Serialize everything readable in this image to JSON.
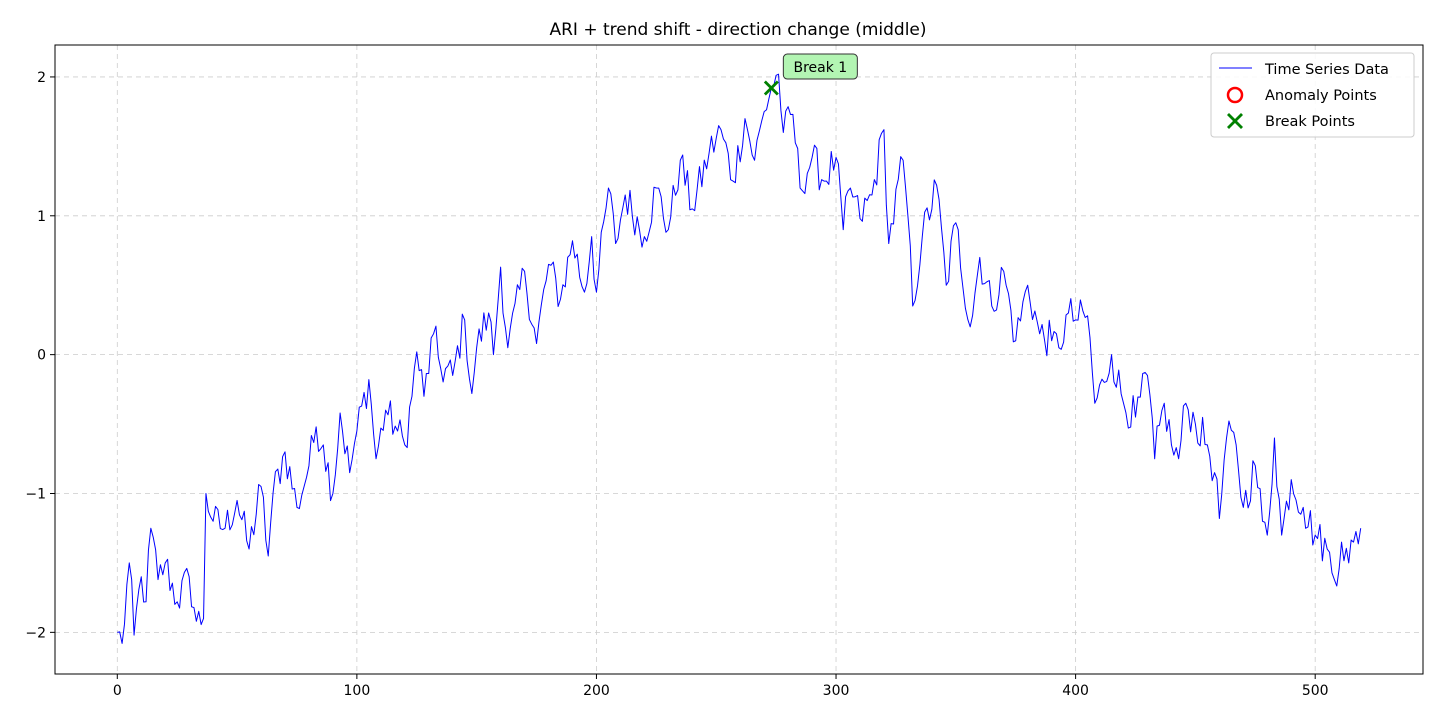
{
  "chart_data": {
    "type": "line",
    "title": "ARI + trend shift - direction change (middle)",
    "xlabel": "",
    "ylabel": "",
    "xlim": [
      -26,
      545
    ],
    "ylim": [
      -2.3,
      2.23
    ],
    "x_ticks": [
      0,
      100,
      200,
      300,
      400,
      500
    ],
    "y_ticks": [
      -2,
      -1,
      0,
      1,
      2
    ],
    "x_tick_labels": [
      "0",
      "100",
      "200",
      "300",
      "400",
      "500"
    ],
    "y_tick_labels": [
      "−2",
      "−1",
      "0",
      "1",
      "2"
    ],
    "grid": true,
    "legend_position": "top-right",
    "legend": [
      {
        "label": "Time Series Data",
        "marker": "line",
        "color": "#0000ff"
      },
      {
        "label": "Anomaly Points",
        "marker": "circle",
        "color": "#ff0000"
      },
      {
        "label": "Break Points",
        "marker": "x",
        "color": "#008000"
      }
    ],
    "series": [
      {
        "name": "Time Series Data",
        "color": "#0000ff",
        "n_points": 520,
        "anchors": [
          [
            0,
            -2.0
          ],
          [
            2,
            -2.08
          ],
          [
            5,
            -1.5
          ],
          [
            7,
            -2.02
          ],
          [
            10,
            -1.6
          ],
          [
            12,
            -1.78
          ],
          [
            14,
            -1.25
          ],
          [
            17,
            -1.62
          ],
          [
            20,
            -1.5
          ],
          [
            25,
            -1.78
          ],
          [
            30,
            -1.6
          ],
          [
            33,
            -1.92
          ],
          [
            36,
            -1.9
          ],
          [
            37,
            -1.0
          ],
          [
            40,
            -1.2
          ],
          [
            45,
            -1.25
          ],
          [
            50,
            -1.05
          ],
          [
            55,
            -1.4
          ],
          [
            60,
            -0.95
          ],
          [
            63,
            -1.45
          ],
          [
            65,
            -1.0
          ],
          [
            70,
            -0.7
          ],
          [
            75,
            -1.1
          ],
          [
            80,
            -0.8
          ],
          [
            83,
            -0.52
          ],
          [
            86,
            -0.65
          ],
          [
            90,
            -1.0
          ],
          [
            93,
            -0.42
          ],
          [
            97,
            -0.85
          ],
          [
            100,
            -0.55
          ],
          [
            105,
            -0.18
          ],
          [
            108,
            -0.75
          ],
          [
            112,
            -0.4
          ],
          [
            117,
            -0.55
          ],
          [
            120,
            -0.65
          ],
          [
            123,
            -0.3
          ],
          [
            125,
            0.02
          ],
          [
            128,
            -0.3
          ],
          [
            132,
            0.15
          ],
          [
            135,
            -0.1
          ],
          [
            140,
            -0.15
          ],
          [
            145,
            0.25
          ],
          [
            148,
            -0.28
          ],
          [
            150,
            0.05
          ],
          [
            155,
            0.3
          ],
          [
            157,
            0.0
          ],
          [
            160,
            0.63
          ],
          [
            163,
            0.05
          ],
          [
            170,
            0.6
          ],
          [
            175,
            0.08
          ],
          [
            180,
            0.65
          ],
          [
            185,
            0.4
          ],
          [
            190,
            0.82
          ],
          [
            195,
            0.45
          ],
          [
            198,
            0.85
          ],
          [
            200,
            0.45
          ],
          [
            205,
            1.2
          ],
          [
            208,
            0.8
          ],
          [
            212,
            1.15
          ],
          [
            220,
            0.85
          ],
          [
            225,
            1.2
          ],
          [
            230,
            0.9
          ],
          [
            235,
            1.4
          ],
          [
            240,
            1.05
          ],
          [
            247,
            1.45
          ],
          [
            252,
            1.62
          ],
          [
            257,
            1.25
          ],
          [
            262,
            1.7
          ],
          [
            266,
            1.4
          ],
          [
            270,
            1.75
          ],
          [
            273,
            1.92
          ],
          [
            276,
            2.02
          ],
          [
            278,
            1.6
          ],
          [
            282,
            1.73
          ],
          [
            285,
            1.2
          ],
          [
            290,
            1.42
          ],
          [
            295,
            1.25
          ],
          [
            300,
            1.42
          ],
          [
            303,
            0.9
          ],
          [
            306,
            1.2
          ],
          [
            310,
            0.98
          ],
          [
            315,
            1.15
          ],
          [
            320,
            1.62
          ],
          [
            322,
            0.8
          ],
          [
            328,
            1.4
          ],
          [
            330,
            1.0
          ],
          [
            332,
            0.35
          ],
          [
            336,
            0.85
          ],
          [
            342,
            1.22
          ],
          [
            346,
            0.5
          ],
          [
            350,
            0.95
          ],
          [
            356,
            0.2
          ],
          [
            360,
            0.7
          ],
          [
            365,
            0.35
          ],
          [
            370,
            0.6
          ],
          [
            375,
            0.1
          ],
          [
            380,
            0.5
          ],
          [
            385,
            0.15
          ],
          [
            390,
            0.1
          ],
          [
            393,
            0.05
          ],
          [
            397,
            0.3
          ],
          [
            400,
            0.25
          ],
          [
            405,
            0.28
          ],
          [
            408,
            -0.35
          ],
          [
            412,
            -0.2
          ],
          [
            415,
            0.0
          ],
          [
            420,
            -0.35
          ],
          [
            425,
            -0.45
          ],
          [
            430,
            -0.15
          ],
          [
            433,
            -0.75
          ],
          [
            437,
            -0.35
          ],
          [
            440,
            -0.65
          ],
          [
            443,
            -0.75
          ],
          [
            446,
            -0.35
          ],
          [
            450,
            -0.5
          ],
          [
            455,
            -0.65
          ],
          [
            458,
            -0.85
          ],
          [
            460,
            -1.18
          ],
          [
            463,
            -0.6
          ],
          [
            467,
            -0.65
          ],
          [
            470,
            -1.1
          ],
          [
            475,
            -0.8
          ],
          [
            478,
            -1.2
          ],
          [
            480,
            -1.3
          ],
          [
            483,
            -0.6
          ],
          [
            486,
            -1.3
          ],
          [
            490,
            -0.9
          ],
          [
            495,
            -1.1
          ],
          [
            500,
            -1.3
          ],
          [
            505,
            -1.4
          ],
          [
            508,
            -1.62
          ],
          [
            511,
            -1.35
          ],
          [
            514,
            -1.5
          ],
          [
            516,
            -1.35
          ],
          [
            519,
            -1.25
          ]
        ]
      },
      {
        "name": "Break Points",
        "color": "#008000",
        "points": [
          [
            273,
            1.92
          ]
        ]
      },
      {
        "name": "Anomaly Points",
        "color": "#ff0000",
        "points": []
      }
    ],
    "annotations": [
      {
        "text": "Break 1",
        "x": 273,
        "y": 1.92,
        "box_color": "#b3f5b3"
      }
    ]
  }
}
